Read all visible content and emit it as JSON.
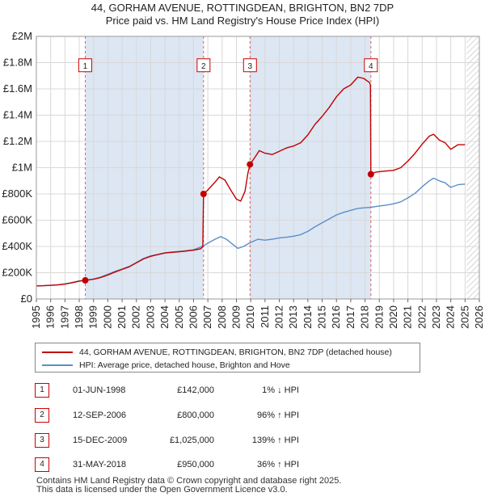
{
  "title_line1": "44, GORHAM AVENUE, ROTTINGDEAN, BRIGHTON, BN2 7DP",
  "title_line2": "Price paid vs. HM Land Registry's House Price Index (HPI)",
  "colors": {
    "property_line": "#c00000",
    "hpi_line": "#5b8fc7",
    "shade": "#dde6f3",
    "vline": "#e06060",
    "grid": "#d8d8d8",
    "hatch": "#bbbbbb"
  },
  "chart_data": {
    "type": "line",
    "title": "44, GORHAM AVENUE, ROTTINGDEAN, BRIGHTON, BN2 7DP — Price paid vs. HM Land Registry's House Price Index (HPI)",
    "xlabel": "",
    "ylabel": "",
    "xlim": [
      1995,
      2026
    ],
    "ylim": [
      0,
      2000000
    ],
    "x_ticks": [
      1995,
      1996,
      1997,
      1998,
      1999,
      2000,
      2001,
      2002,
      2003,
      2004,
      2005,
      2006,
      2007,
      2008,
      2009,
      2010,
      2011,
      2012,
      2013,
      2014,
      2015,
      2016,
      2017,
      2018,
      2019,
      2020,
      2021,
      2022,
      2023,
      2024,
      2025,
      2026
    ],
    "y_ticks": [
      {
        "value": 0,
        "label": "£0"
      },
      {
        "value": 200000,
        "label": "£200K"
      },
      {
        "value": 400000,
        "label": "£400K"
      },
      {
        "value": 600000,
        "label": "£600K"
      },
      {
        "value": 800000,
        "label": "£800K"
      },
      {
        "value": 1000000,
        "label": "£1M"
      },
      {
        "value": 1200000,
        "label": "£1.2M"
      },
      {
        "value": 1400000,
        "label": "£1.4M"
      },
      {
        "value": 1600000,
        "label": "£1.6M"
      },
      {
        "value": 1800000,
        "label": "£1.8M"
      },
      {
        "value": 2000000,
        "label": "£2M"
      }
    ],
    "grid": true,
    "future_hatch_from": 2025.1,
    "series": [
      {
        "name": "44, GORHAM AVENUE, ROTTINGDEAN, BRIGHTON, BN2 7DP (detached house)",
        "color": "#c00000",
        "points": [
          [
            1995.0,
            100000
          ],
          [
            1995.5,
            101000
          ],
          [
            1996.0,
            104000
          ],
          [
            1996.5,
            107000
          ],
          [
            1997.0,
            113000
          ],
          [
            1997.5,
            124000
          ],
          [
            1998.0,
            136000
          ],
          [
            1998.42,
            142000
          ],
          [
            1999.0,
            150000
          ],
          [
            1999.5,
            163000
          ],
          [
            2000.0,
            182000
          ],
          [
            2000.5,
            205000
          ],
          [
            2001.0,
            225000
          ],
          [
            2001.5,
            245000
          ],
          [
            2002.0,
            275000
          ],
          [
            2002.5,
            305000
          ],
          [
            2003.0,
            325000
          ],
          [
            2003.5,
            338000
          ],
          [
            2004.0,
            350000
          ],
          [
            2004.5,
            355000
          ],
          [
            2005.0,
            360000
          ],
          [
            2005.5,
            365000
          ],
          [
            2006.0,
            372000
          ],
          [
            2006.5,
            382000
          ],
          [
            2006.65,
            398000
          ],
          [
            2006.7,
            800000
          ],
          [
            2007.0,
            830000
          ],
          [
            2007.5,
            890000
          ],
          [
            2007.8,
            930000
          ],
          [
            2008.2,
            905000
          ],
          [
            2008.6,
            830000
          ],
          [
            2009.0,
            760000
          ],
          [
            2009.3,
            745000
          ],
          [
            2009.6,
            820000
          ],
          [
            2009.8,
            955000
          ],
          [
            2009.95,
            1025000
          ],
          [
            2010.3,
            1080000
          ],
          [
            2010.6,
            1130000
          ],
          [
            2011.0,
            1110000
          ],
          [
            2011.5,
            1100000
          ],
          [
            2012.0,
            1125000
          ],
          [
            2012.5,
            1150000
          ],
          [
            2013.0,
            1165000
          ],
          [
            2013.5,
            1190000
          ],
          [
            2014.0,
            1250000
          ],
          [
            2014.5,
            1330000
          ],
          [
            2015.0,
            1390000
          ],
          [
            2015.5,
            1460000
          ],
          [
            2016.0,
            1540000
          ],
          [
            2016.5,
            1600000
          ],
          [
            2017.0,
            1630000
          ],
          [
            2017.5,
            1690000
          ],
          [
            2017.9,
            1680000
          ],
          [
            2018.3,
            1650000
          ],
          [
            2018.38,
            1630000
          ],
          [
            2018.41,
            950000
          ],
          [
            2018.7,
            965000
          ],
          [
            2019.0,
            970000
          ],
          [
            2019.5,
            975000
          ],
          [
            2020.0,
            980000
          ],
          [
            2020.5,
            1000000
          ],
          [
            2021.0,
            1050000
          ],
          [
            2021.5,
            1110000
          ],
          [
            2022.0,
            1180000
          ],
          [
            2022.5,
            1240000
          ],
          [
            2022.8,
            1255000
          ],
          [
            2023.2,
            1210000
          ],
          [
            2023.6,
            1190000
          ],
          [
            2024.0,
            1140000
          ],
          [
            2024.5,
            1175000
          ],
          [
            2025.0,
            1175000
          ]
        ]
      },
      {
        "name": "HPI: Average price, detached house, Brighton and Hove",
        "color": "#5b8fc7",
        "points": [
          [
            1995.0,
            100000
          ],
          [
            1995.5,
            101000
          ],
          [
            1996.0,
            104000
          ],
          [
            1996.5,
            108000
          ],
          [
            1997.0,
            115000
          ],
          [
            1997.5,
            126000
          ],
          [
            1998.0,
            138000
          ],
          [
            1998.42,
            143000
          ],
          [
            1999.0,
            152000
          ],
          [
            1999.5,
            167000
          ],
          [
            2000.0,
            188000
          ],
          [
            2000.5,
            210000
          ],
          [
            2001.0,
            228000
          ],
          [
            2001.5,
            248000
          ],
          [
            2002.0,
            278000
          ],
          [
            2002.5,
            308000
          ],
          [
            2003.0,
            328000
          ],
          [
            2003.5,
            340000
          ],
          [
            2004.0,
            352000
          ],
          [
            2004.5,
            358000
          ],
          [
            2005.0,
            362000
          ],
          [
            2005.5,
            368000
          ],
          [
            2006.0,
            375000
          ],
          [
            2006.7,
            405000
          ],
          [
            2007.0,
            425000
          ],
          [
            2007.5,
            455000
          ],
          [
            2007.9,
            475000
          ],
          [
            2008.3,
            455000
          ],
          [
            2008.7,
            420000
          ],
          [
            2009.1,
            385000
          ],
          [
            2009.5,
            400000
          ],
          [
            2009.95,
            428000
          ],
          [
            2010.5,
            455000
          ],
          [
            2011.0,
            448000
          ],
          [
            2011.5,
            455000
          ],
          [
            2012.0,
            465000
          ],
          [
            2012.5,
            470000
          ],
          [
            2013.0,
            478000
          ],
          [
            2013.5,
            490000
          ],
          [
            2014.0,
            515000
          ],
          [
            2014.5,
            550000
          ],
          [
            2015.0,
            580000
          ],
          [
            2015.5,
            610000
          ],
          [
            2016.0,
            640000
          ],
          [
            2016.5,
            660000
          ],
          [
            2017.0,
            675000
          ],
          [
            2017.5,
            690000
          ],
          [
            2018.0,
            695000
          ],
          [
            2018.41,
            698000
          ],
          [
            2019.0,
            708000
          ],
          [
            2019.5,
            715000
          ],
          [
            2020.0,
            725000
          ],
          [
            2020.5,
            740000
          ],
          [
            2021.0,
            770000
          ],
          [
            2021.5,
            805000
          ],
          [
            2022.0,
            855000
          ],
          [
            2022.5,
            900000
          ],
          [
            2022.8,
            920000
          ],
          [
            2023.2,
            900000
          ],
          [
            2023.6,
            885000
          ],
          [
            2024.0,
            850000
          ],
          [
            2024.5,
            870000
          ],
          [
            2025.0,
            875000
          ]
        ]
      }
    ],
    "sales": [
      {
        "id": "1",
        "x": 1998.42,
        "price": 142000
      },
      {
        "id": "2",
        "x": 2006.7,
        "price": 800000
      },
      {
        "id": "3",
        "x": 2009.95,
        "price": 1025000
      },
      {
        "id": "4",
        "x": 2018.41,
        "price": 950000
      }
    ],
    "shaded_spans": [
      [
        1998.42,
        2006.7
      ],
      [
        2009.95,
        2018.41
      ]
    ],
    "marker_box_value": 1780000
  },
  "legend": {
    "property": "44, GORHAM AVENUE, ROTTINGDEAN, BRIGHTON, BN2 7DP (detached house)",
    "hpi": "HPI: Average price, detached house, Brighton and Hove"
  },
  "sales_table": [
    {
      "id": "1",
      "date": "01-JUN-1998",
      "price": "£142,000",
      "hpi": "1% ↓ HPI"
    },
    {
      "id": "2",
      "date": "12-SEP-2006",
      "price": "£800,000",
      "hpi": "96% ↑ HPI"
    },
    {
      "id": "3",
      "date": "15-DEC-2009",
      "price": "£1,025,000",
      "hpi": "139% ↑ HPI"
    },
    {
      "id": "4",
      "date": "31-MAY-2018",
      "price": "£950,000",
      "hpi": "36% ↑ HPI"
    }
  ],
  "footer_line1": "Contains HM Land Registry data © Crown copyright and database right 2025.",
  "footer_line2": "This data is licensed under the Open Government Licence v3.0."
}
